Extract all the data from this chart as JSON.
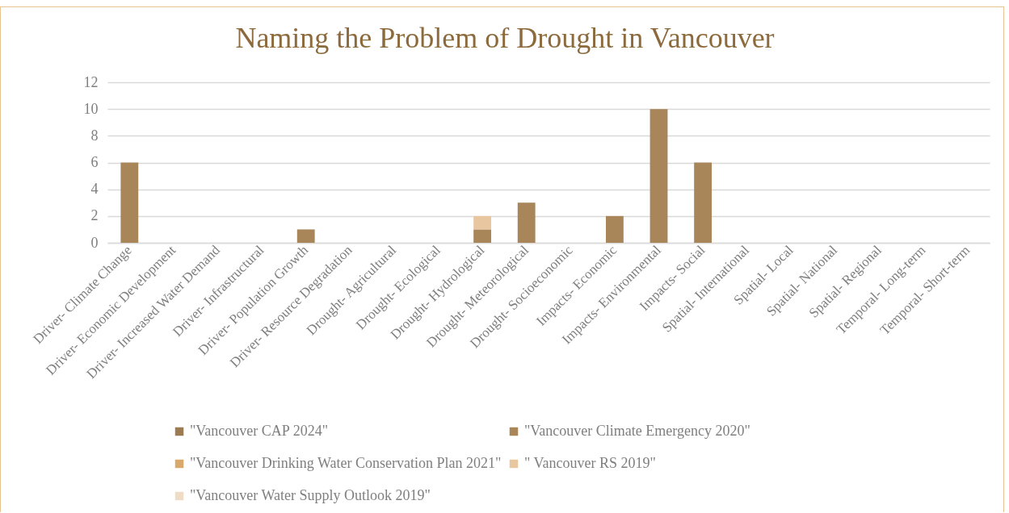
{
  "chart_data": {
    "type": "bar",
    "title": "Naming the Problem of Drought in Vancouver",
    "categories": [
      "Driver- Climate Change",
      "Driver- Economic Development",
      "Driver- Increased Water Demand",
      "Driver- Infrastructural",
      "Driver- Population Growth",
      "Driver- Resource Degradation",
      "Drought- Agricultural",
      "Drought- Ecological",
      "Drought- Hydrological",
      "Drought- Meteorological",
      "Drought- Socioeconomic",
      "Impacts- Economic",
      "Impacts- Environmental",
      "Impacts- Social",
      "Spatial- International",
      "Spatial- Local",
      "Spatial- National",
      "Spatial- Regional",
      "Temporal- Long-term",
      "Temporal- Short-term"
    ],
    "stacked": true,
    "series": [
      {
        "name": "\"Vancouver CAP 2024\"",
        "color": "#9c7b52",
        "values": [
          null,
          null,
          null,
          null,
          null,
          null,
          null,
          null,
          null,
          null,
          null,
          null,
          null,
          null,
          null,
          null,
          null,
          null,
          null,
          null
        ]
      },
      {
        "name": "\"Vancouver Climate Emergency 2020\"",
        "color": "#a8865a",
        "values": [
          6,
          null,
          null,
          null,
          1,
          null,
          null,
          null,
          1,
          3,
          null,
          2,
          10,
          6,
          null,
          null,
          null,
          null,
          null,
          null
        ]
      },
      {
        "name": "\"Vancouver Drinking Water Conservation Plan 2021\"",
        "color": "#d9a96b",
        "values": [
          null,
          null,
          null,
          null,
          null,
          null,
          null,
          null,
          null,
          null,
          null,
          null,
          null,
          null,
          null,
          null,
          null,
          null,
          null,
          null
        ]
      },
      {
        "name": "\" Vancouver RS 2019\"",
        "color": "#e8c7a0",
        "values": [
          null,
          null,
          null,
          null,
          null,
          null,
          null,
          null,
          1,
          null,
          null,
          null,
          null,
          null,
          null,
          null,
          null,
          null,
          null,
          null
        ]
      },
      {
        "name": "\"Vancouver Water Supply Outlook 2019\"",
        "color": "#f0dcc6",
        "values": [
          null,
          null,
          null,
          null,
          null,
          null,
          null,
          null,
          null,
          null,
          null,
          null,
          null,
          null,
          null,
          null,
          null,
          null,
          null,
          null
        ]
      }
    ],
    "ylim": [
      0,
      12
    ],
    "yticks": [
      0,
      2,
      4,
      6,
      8,
      10,
      12
    ],
    "grid": "y",
    "legend": "bottom"
  }
}
